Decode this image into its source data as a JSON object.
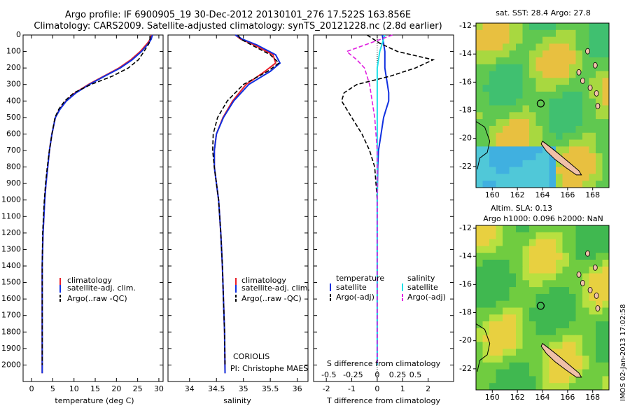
{
  "header": {
    "title_line1": "Argo profile: IF 6900905_19 30-Dec-2012 20130101_276 17.522S 163.856E",
    "title_line2": "Climatology: CARS2009. Satellite-adjusted climatology: synTS_20121228.nc (2.8d earlier)"
  },
  "colors": {
    "climatology": "#e8202a",
    "satellite": "#1030e0",
    "argo": "#000000",
    "argo_adj_s": "#e020e0",
    "satellite_s": "#20e0e8",
    "bg": "#ffffff"
  },
  "legend_tp": [
    "climatology",
    "satellite-adj. clim.",
    "Argo(..raw -QC)"
  ],
  "legend_sal": [
    "climatology",
    "satellite-adj. clim.",
    "Argo(..raw -QC)"
  ],
  "legend_diff": {
    "temp_header": "temperature",
    "sal_header": "salinity",
    "temp_sat": "satellite",
    "temp_argo": "Argo(-adj)",
    "sal_sat": "satellite",
    "sal_argo": "Argo(-adj)"
  },
  "credits": {
    "center": "CORIOLIS",
    "pi": "PI: Christophe MAES"
  },
  "maps": {
    "top_label": "sat. SST: 28.4 Argo: 27.8",
    "bottom_label1": "Altim. SLA: 0.13",
    "bottom_label2": "Argo h1000: 0.096 h2000: NaN",
    "lon_ticks": [
      "160",
      "162",
      "164",
      "166",
      "168"
    ],
    "lat_ticks": [
      "-12",
      "-14",
      "-16",
      "-18",
      "-20",
      "-22"
    ],
    "imos_stamp": "IMOS 02-Jan-2013 17:02:58"
  },
  "chart_data": [
    {
      "type": "line",
      "xlabel": "temperature (deg C)",
      "ylabel": "",
      "xlim": [
        -2,
        31
      ],
      "ylim": [
        0,
        2100
      ],
      "xticks": [
        0,
        5,
        10,
        15,
        20,
        25,
        30
      ],
      "yticks": [
        0,
        100,
        200,
        300,
        400,
        500,
        600,
        700,
        800,
        900,
        1000,
        1100,
        1200,
        1300,
        1400,
        1500,
        1600,
        1700,
        1800,
        1900,
        2000
      ],
      "y_reversed": true,
      "series": [
        {
          "name": "climatology",
          "x": [
            28.3,
            28.0,
            27.3,
            25.6,
            23.4,
            20.6,
            17.0,
            13.4,
            10.3,
            8.1,
            6.6,
            5.6,
            4.8,
            4.2,
            3.8,
            3.4,
            3.1,
            2.9,
            2.7,
            2.5,
            2.5
          ],
          "y": [
            0,
            25,
            50,
            100,
            150,
            200,
            250,
            300,
            350,
            400,
            450,
            500,
            600,
            700,
            800,
            900,
            1000,
            1100,
            1200,
            1400,
            2050
          ]
        },
        {
          "name": "satellite-adj. clim.",
          "x": [
            28.5,
            28.2,
            27.6,
            25.9,
            23.7,
            20.9,
            17.2,
            13.6,
            10.5,
            8.2,
            6.7,
            5.6,
            4.8,
            4.2,
            3.8,
            3.4,
            3.1,
            2.9,
            2.7,
            2.5,
            2.5
          ],
          "y": [
            0,
            25,
            50,
            100,
            150,
            200,
            250,
            300,
            350,
            400,
            450,
            500,
            600,
            700,
            800,
            900,
            1000,
            1100,
            1200,
            1400,
            2050
          ]
        },
        {
          "name": "Argo(..raw -QC)",
          "x": [
            27.9,
            27.9,
            27.7,
            26.5,
            25.2,
            22.8,
            19.0,
            14.0,
            10.0,
            7.8,
            6.4,
            5.5,
            4.8,
            4.2,
            3.7,
            3.3,
            3.0,
            2.8,
            2.6,
            2.5,
            2.5
          ],
          "y": [
            5,
            25,
            50,
            100,
            150,
            200,
            250,
            300,
            350,
            400,
            450,
            500,
            600,
            700,
            800,
            900,
            1000,
            1100,
            1200,
            1400,
            2000
          ]
        }
      ]
    },
    {
      "type": "line",
      "xlabel": "salinity",
      "xlim": [
        33.6,
        36.2
      ],
      "ylim": [
        0,
        2100
      ],
      "xticks": [
        34,
        34.5,
        35,
        35.5,
        36
      ],
      "y_reversed": true,
      "series": [
        {
          "name": "climatology",
          "x": [
            34.85,
            34.95,
            35.2,
            35.55,
            35.6,
            35.4,
            35.05,
            34.8,
            34.62,
            34.5,
            34.46,
            34.46,
            34.5,
            34.54,
            34.58,
            34.61,
            34.63,
            34.65,
            34.66
          ],
          "y": [
            0,
            25,
            60,
            120,
            170,
            220,
            300,
            400,
            500,
            600,
            700,
            800,
            900,
            1000,
            1200,
            1400,
            1600,
            1800,
            2050
          ]
        },
        {
          "name": "satellite-adj. clim.",
          "x": [
            34.85,
            34.98,
            35.25,
            35.6,
            35.68,
            35.5,
            35.1,
            34.82,
            34.63,
            34.5,
            34.46,
            34.46,
            34.5,
            34.54,
            34.58,
            34.61,
            34.63,
            34.65,
            34.66
          ],
          "y": [
            0,
            25,
            60,
            120,
            170,
            220,
            300,
            400,
            500,
            600,
            700,
            800,
            900,
            1000,
            1200,
            1400,
            1600,
            1800,
            2050
          ]
        },
        {
          "name": "Argo(..raw -QC)",
          "x": [
            34.9,
            34.95,
            35.15,
            35.5,
            35.66,
            35.45,
            35.0,
            34.7,
            34.52,
            34.44,
            34.43,
            34.46,
            34.5,
            34.54,
            34.58,
            34.61,
            34.63,
            34.65,
            34.66
          ],
          "y": [
            0,
            25,
            60,
            120,
            170,
            220,
            300,
            400,
            500,
            600,
            700,
            800,
            900,
            1000,
            1200,
            1400,
            1600,
            1800,
            2000
          ]
        }
      ]
    },
    {
      "type": "line",
      "xlabel": "T difference from climatology",
      "xlabel_top": "S difference from climatology",
      "xlim": [
        -2.5,
        3
      ],
      "ylim": [
        0,
        2100
      ],
      "xticks": [
        -2,
        -1,
        0,
        1,
        2
      ],
      "xticks_top": [
        "-0.5",
        "-0.25",
        "0",
        "0.25",
        "0.5"
      ],
      "y_reversed": true,
      "series": [
        {
          "name": "temperature satellite",
          "x": [
            0.2,
            0.25,
            0.3,
            0.3,
            0.3,
            0.35,
            0.4,
            0.45,
            0.45,
            0.35,
            0.25,
            0.15,
            0.05,
            0.02,
            0.0,
            0.0
          ],
          "y": [
            0,
            50,
            100,
            150,
            200,
            250,
            300,
            350,
            400,
            450,
            500,
            600,
            700,
            800,
            1000,
            2000
          ]
        },
        {
          "name": "temperature Argo(-adj)",
          "x": [
            -0.4,
            0.1,
            0.8,
            2.2,
            1.5,
            0.5,
            -0.8,
            -1.3,
            -1.4,
            -1.2,
            -1.0,
            -0.6,
            -0.3,
            -0.1,
            0.0,
            0.0
          ],
          "y": [
            0,
            50,
            100,
            150,
            200,
            250,
            300,
            350,
            400,
            450,
            500,
            600,
            700,
            800,
            1000,
            2000
          ]
        },
        {
          "name": "salinity satellite",
          "x": [
            0.3,
            0.2,
            0.1,
            0.05,
            0.0,
            0.0,
            0.0,
            0.0,
            0.0,
            0.0,
            0.0
          ],
          "y": [
            0,
            50,
            100,
            150,
            200,
            300,
            400,
            500,
            700,
            1000,
            2000
          ]
        },
        {
          "name": "salinity Argo(-adj)",
          "x": [
            0.6,
            -0.3,
            -1.2,
            -0.8,
            -0.5,
            -0.3,
            -0.2,
            -0.1,
            0.0,
            0.0
          ],
          "y": [
            0,
            50,
            100,
            150,
            200,
            300,
            400,
            500,
            700,
            2000
          ]
        }
      ]
    },
    {
      "type": "heatmap",
      "title": "sat. SST: 28.4 Argo: 27.8",
      "xlim": [
        158.7,
        169.3
      ],
      "ylim": [
        -23.5,
        -11.8
      ],
      "marker": {
        "lon": 163.856,
        "lat": -17.522
      }
    },
    {
      "type": "heatmap",
      "title": "Altim. SLA: 0.13",
      "xlim": [
        158.7,
        169.3
      ],
      "ylim": [
        -23.5,
        -11.8
      ],
      "marker": {
        "lon": 163.856,
        "lat": -17.522
      }
    }
  ]
}
